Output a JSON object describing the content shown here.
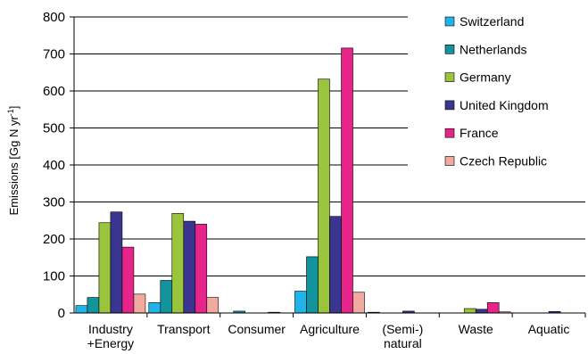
{
  "chart_data": {
    "type": "bar",
    "title": "",
    "xlabel": "",
    "ylabel": "Emissions [Gg N yr",
    "ylabel_sup": "-1",
    "ylabel_end": "]",
    "ylim": [
      0,
      800
    ],
    "yticks": [
      0,
      100,
      200,
      300,
      400,
      500,
      600,
      700,
      800
    ],
    "grid": true,
    "legend_position": "top-right",
    "categories": [
      [
        "Industry",
        "+Energy"
      ],
      [
        "Transport"
      ],
      [
        "Consumer"
      ],
      [
        "Agriculture"
      ],
      [
        "(Semi-)",
        "natural"
      ],
      [
        "Waste"
      ],
      [
        "Aquatic"
      ]
    ],
    "series": [
      {
        "name": "Switzerland",
        "color": "#1fb5ea",
        "values": [
          20,
          28,
          0,
          59,
          2,
          0,
          0
        ]
      },
      {
        "name": "Netherlands",
        "color": "#13939b",
        "values": [
          42,
          88,
          5,
          152,
          0,
          0,
          0
        ]
      },
      {
        "name": "Germany",
        "color": "#9ac43c",
        "values": [
          244,
          269,
          0,
          632,
          0,
          12,
          0
        ]
      },
      {
        "name": "United Kingdom",
        "color": "#3a3590",
        "values": [
          273,
          248,
          0,
          261,
          5,
          10,
          4
        ]
      },
      {
        "name": "France",
        "color": "#e6248a",
        "values": [
          178,
          240,
          2,
          716,
          0,
          28,
          0
        ]
      },
      {
        "name": "Czech Republic",
        "color": "#f1a9a0",
        "values": [
          51,
          42,
          0,
          56,
          0,
          3,
          0
        ]
      }
    ]
  }
}
